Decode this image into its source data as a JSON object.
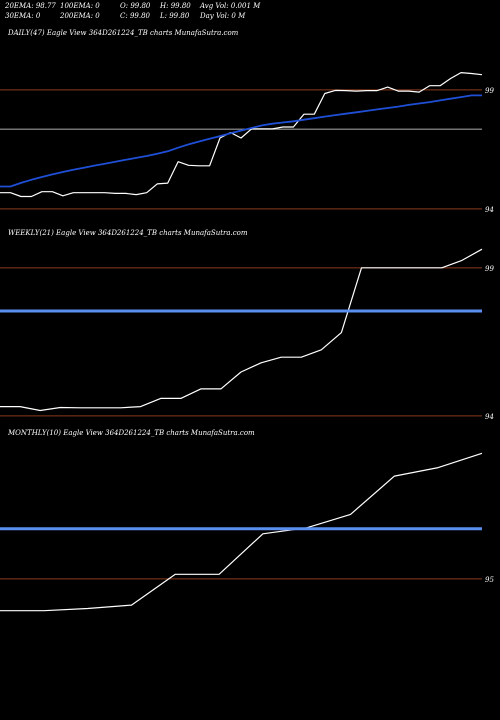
{
  "header": {
    "row1": [
      "20EMA: 98.77",
      "100EMA: 0",
      "O: 99.80",
      "H: 99.80",
      "Avg Vol: 0.001 M"
    ],
    "row2": [
      "30EMA: 0",
      "200EMA: 0",
      "C: 99.80",
      "L: 99.80",
      "Day Vol: 0   M"
    ]
  },
  "colors": {
    "background": "#000000",
    "price_line": "#ffffff",
    "ema_line_daily": "#1f4fd6",
    "ema_line_weekly_monthly": "#5a8ff0",
    "gridline": "#8b3a1e",
    "gray_line": "#9a9a9a"
  },
  "chart_data": [
    {
      "type": "line",
      "title": "DAILY(47) Eagle  View  364D261224_TB charts MunafaSutra.com",
      "ytick_labels": [
        {
          "label": "99",
          "value": 99
        },
        {
          "label": "94",
          "value": 94
        }
      ],
      "ylim": [
        93.32,
        101.1
      ],
      "reference_lines": [
        99,
        94
      ],
      "gray_level": 97.35,
      "series": [
        {
          "role": "price",
          "values": [
            94.68,
            94.68,
            94.52,
            94.52,
            94.72,
            94.72,
            94.55,
            94.68,
            94.68,
            94.68,
            94.68,
            94.65,
            94.65,
            94.6,
            94.68,
            95.05,
            95.08,
            95.98,
            95.83,
            95.81,
            95.81,
            96.98,
            97.21,
            96.98,
            97.36,
            97.36,
            97.36,
            97.44,
            97.44,
            97.98,
            97.98,
            98.85,
            98.98,
            98.97,
            98.95,
            98.97,
            98.97,
            99.12,
            98.95,
            98.95,
            98.91,
            99.18,
            99.18,
            99.48,
            99.73,
            99.69,
            99.64
          ]
        },
        {
          "role": "ema",
          "values": [
            94.94,
            94.94,
            95.09,
            95.22,
            95.34,
            95.45,
            95.55,
            95.64,
            95.73,
            95.82,
            95.9,
            95.98,
            96.06,
            96.14,
            96.22,
            96.32,
            96.42,
            96.57,
            96.71,
            96.83,
            96.95,
            97.06,
            97.18,
            97.29,
            97.4,
            97.51,
            97.58,
            97.63,
            97.68,
            97.75,
            97.81,
            97.88,
            97.94,
            98.0,
            98.06,
            98.12,
            98.18,
            98.24,
            98.3,
            98.37,
            98.43,
            98.49,
            98.56,
            98.63,
            98.7,
            98.77,
            98.77
          ]
        }
      ]
    },
    {
      "type": "line",
      "title": "WEEKLY(21) Eagle  View  364D261224_TB charts MunafaSutra.com",
      "ytick_labels": [
        {
          "label": "99",
          "value": 99
        },
        {
          "label": "94",
          "value": 94
        }
      ],
      "ylim": [
        93.69,
        99.94
      ],
      "reference_lines": [
        99,
        94
      ],
      "gray_level": 97.54,
      "series": [
        {
          "role": "price",
          "values": [
            94.31,
            94.31,
            94.18,
            94.28,
            94.27,
            94.27,
            94.27,
            94.31,
            94.59,
            94.59,
            94.91,
            94.91,
            95.48,
            95.79,
            95.98,
            95.98,
            96.23,
            96.81,
            99.0,
            99.0,
            99.0,
            99.0,
            99.0,
            99.25,
            99.63
          ]
        },
        {
          "role": "ema",
          "values": [
            97.54,
            97.54,
            97.54,
            97.54,
            97.54,
            97.54,
            97.54,
            97.54,
            97.54,
            97.54,
            97.54,
            97.54,
            97.54,
            97.54,
            97.54,
            97.54,
            97.54,
            97.54,
            97.54,
            97.54,
            97.54,
            97.54,
            97.54,
            97.54,
            97.54
          ]
        }
      ]
    },
    {
      "type": "line",
      "title": "MONTHLY(10) Eagle  View  364D261224_TB charts MunafaSutra.com",
      "ytick_labels": [
        {
          "label": "95",
          "value": 95
        }
      ],
      "ylim": [
        92.48,
        100.73
      ],
      "reference_lines": [
        95
      ],
      "gray_level": 97.07,
      "series": [
        {
          "role": "price",
          "values": [
            93.69,
            93.69,
            93.78,
            93.92,
            95.19,
            95.19,
            96.86,
            97.11,
            97.66,
            99.24,
            99.59,
            100.18
          ]
        },
        {
          "role": "ema",
          "values": [
            97.07,
            97.07,
            97.07,
            97.07,
            97.07,
            97.07,
            97.07,
            97.07,
            97.07,
            97.07,
            97.07,
            97.07
          ]
        }
      ]
    }
  ]
}
